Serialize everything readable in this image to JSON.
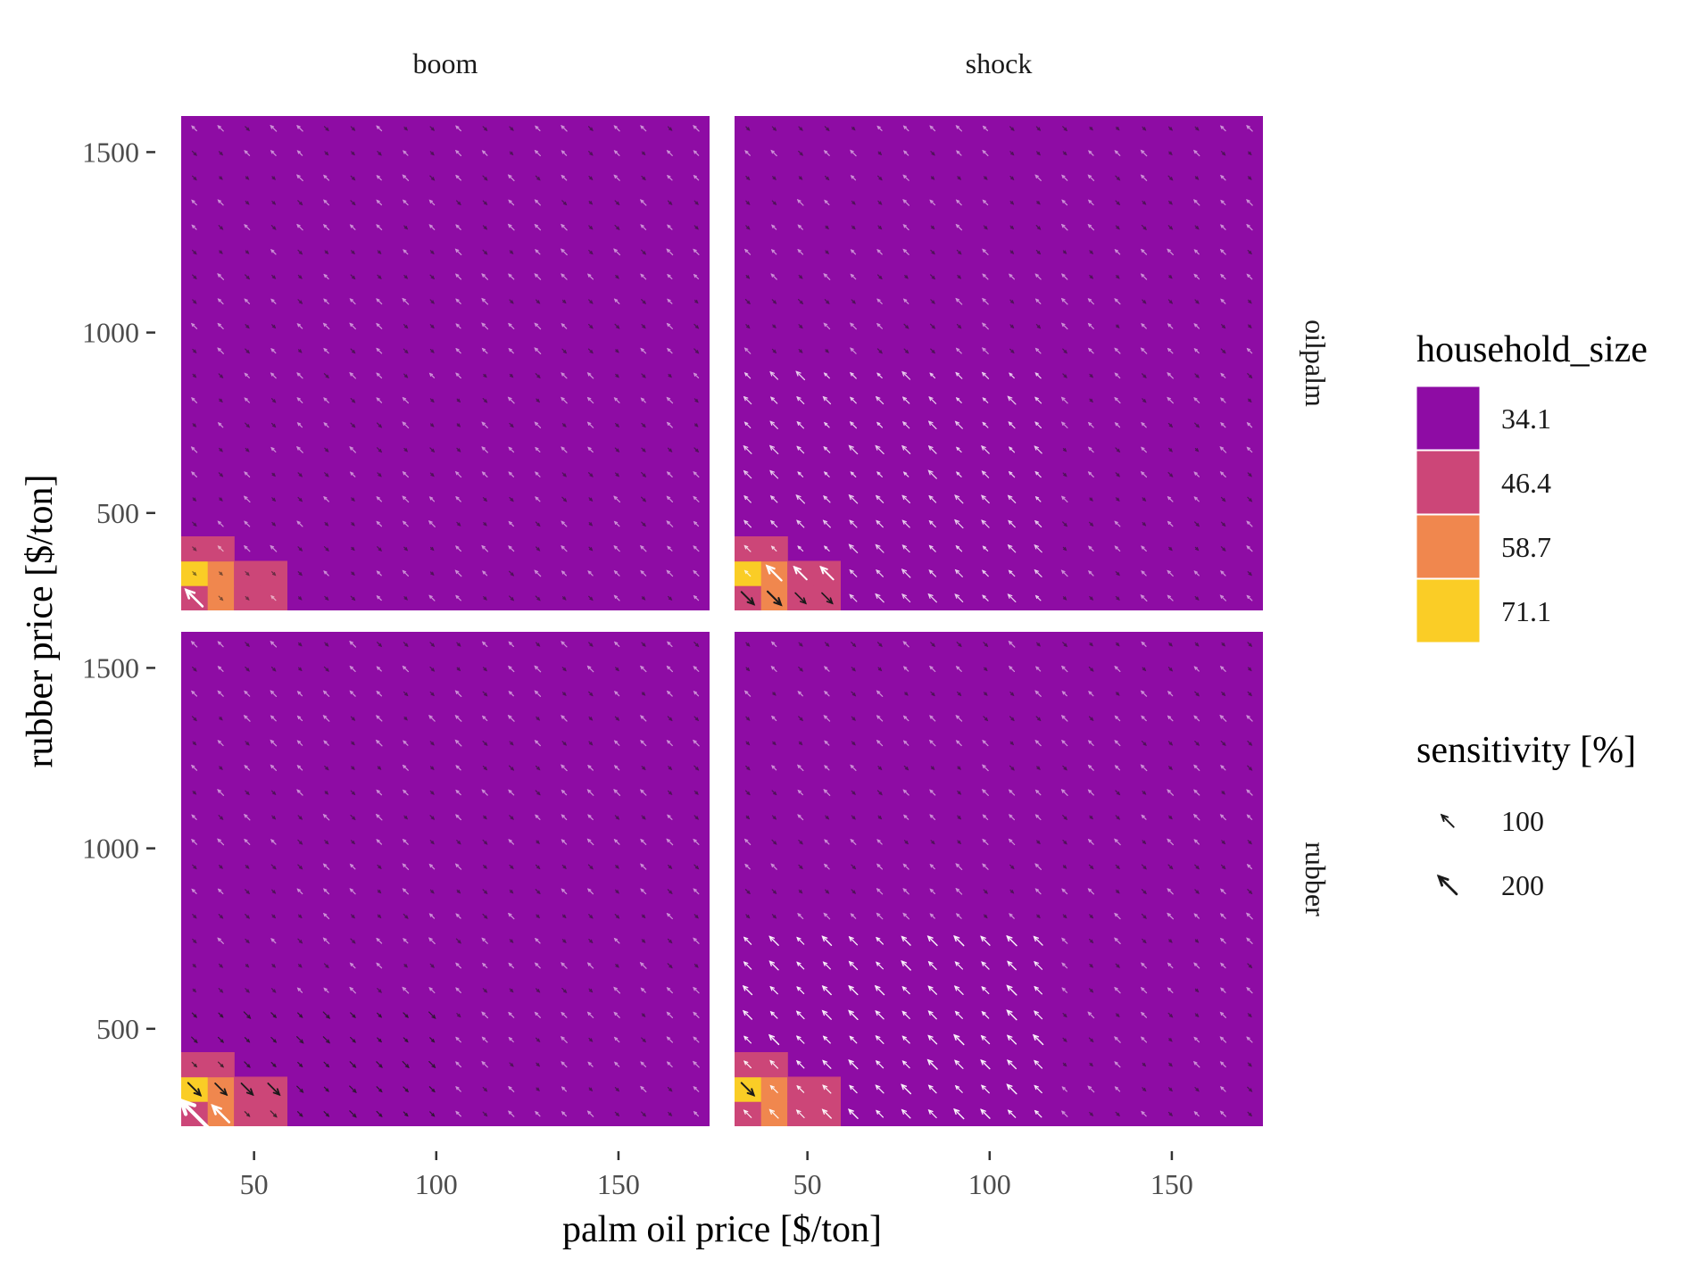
{
  "chart_data": {
    "type": "heatmap",
    "facets": {
      "columns": [
        "boom",
        "shock"
      ],
      "rows": [
        "oilpalm",
        "rubber"
      ]
    },
    "xlabel": "palm oil price [$/ton]",
    "ylabel": "rubber price [$/ton]",
    "xlim": [
      30,
      175
    ],
    "ylim": [
      230,
      1600
    ],
    "x_ticks": [
      50,
      100,
      150
    ],
    "y_ticks": [
      500,
      1000,
      1500
    ],
    "grid_step": {
      "x": 7.25,
      "y": 68.5
    },
    "grid_on": false,
    "fill": {
      "name": "household_size",
      "levels": [
        {
          "label": "34.1",
          "value": 34.1,
          "color": "#8E0CA4"
        },
        {
          "label": "46.4",
          "value": 46.4,
          "color": "#CC4678"
        },
        {
          "label": "58.7",
          "value": 58.7,
          "color": "#F0874E"
        },
        {
          "label": "71.1",
          "value": 71.1,
          "color": "#FACD26"
        }
      ],
      "default_value": 34.1
    },
    "arrows": {
      "name": "sensitivity [%]",
      "legend_values": [
        100,
        200
      ],
      "light_color": "#ffffff",
      "dark_color": "#1a1a1a"
    },
    "panels": [
      {
        "column": "boom",
        "row": "oilpalm",
        "cells": [
          {
            "x": 33.6,
            "y": 264,
            "value": 46.4
          },
          {
            "x": 40.9,
            "y": 264,
            "value": 58.7
          },
          {
            "x": 48.1,
            "y": 264,
            "value": 46.4
          },
          {
            "x": 55.4,
            "y": 264,
            "value": 46.4
          },
          {
            "x": 33.6,
            "y": 333,
            "value": 71.1
          },
          {
            "x": 40.9,
            "y": 333,
            "value": 58.7
          },
          {
            "x": 48.1,
            "y": 333,
            "value": 46.4
          },
          {
            "x": 55.4,
            "y": 333,
            "value": 46.4
          },
          {
            "x": 33.6,
            "y": 401,
            "value": 46.4
          },
          {
            "x": 40.9,
            "y": 401,
            "value": 46.4
          }
        ],
        "arrow_field": "faint_mixed",
        "arrows": [
          {
            "x": 33.6,
            "y": 264,
            "value": 100,
            "tone": "light",
            "dir": "nw"
          }
        ]
      },
      {
        "column": "shock",
        "row": "oilpalm",
        "cells": [
          {
            "x": 33.6,
            "y": 264,
            "value": 46.4
          },
          {
            "x": 40.9,
            "y": 264,
            "value": 58.7
          },
          {
            "x": 48.1,
            "y": 264,
            "value": 46.4
          },
          {
            "x": 55.4,
            "y": 264,
            "value": 46.4
          },
          {
            "x": 33.6,
            "y": 333,
            "value": 71.1
          },
          {
            "x": 40.9,
            "y": 333,
            "value": 58.7
          },
          {
            "x": 48.1,
            "y": 333,
            "value": 46.4
          },
          {
            "x": 55.4,
            "y": 333,
            "value": 46.4
          },
          {
            "x": 33.6,
            "y": 401,
            "value": 46.4
          },
          {
            "x": 40.9,
            "y": 401,
            "value": 46.4
          }
        ],
        "arrow_field": "moderate_light",
        "arrows": [
          {
            "x": 33.6,
            "y": 264,
            "value": 60,
            "tone": "dark",
            "dir": "se"
          },
          {
            "x": 40.9,
            "y": 264,
            "value": 70,
            "tone": "dark",
            "dir": "se"
          },
          {
            "x": 48.1,
            "y": 264,
            "value": 40,
            "tone": "dark",
            "dir": "se"
          },
          {
            "x": 55.4,
            "y": 264,
            "value": 40,
            "tone": "dark",
            "dir": "se"
          },
          {
            "x": 40.9,
            "y": 333,
            "value": 80,
            "tone": "light",
            "dir": "nw"
          },
          {
            "x": 48.1,
            "y": 333,
            "value": 60,
            "tone": "light",
            "dir": "nw"
          },
          {
            "x": 55.4,
            "y": 333,
            "value": 60,
            "tone": "light",
            "dir": "nw"
          }
        ]
      },
      {
        "column": "boom",
        "row": "rubber",
        "cells": [
          {
            "x": 33.6,
            "y": 264,
            "value": 46.4
          },
          {
            "x": 40.9,
            "y": 264,
            "value": 58.7
          },
          {
            "x": 48.1,
            "y": 264,
            "value": 46.4
          },
          {
            "x": 55.4,
            "y": 264,
            "value": 46.4
          },
          {
            "x": 33.6,
            "y": 333,
            "value": 71.1
          },
          {
            "x": 40.9,
            "y": 333,
            "value": 58.7
          },
          {
            "x": 48.1,
            "y": 333,
            "value": 46.4
          },
          {
            "x": 55.4,
            "y": 333,
            "value": 46.4
          },
          {
            "x": 33.6,
            "y": 401,
            "value": 46.4
          },
          {
            "x": 40.9,
            "y": 401,
            "value": 46.4
          }
        ],
        "arrow_field": "dark_low",
        "arrows": [
          {
            "x": 33.6,
            "y": 264,
            "value": 200,
            "tone": "light",
            "dir": "nw"
          },
          {
            "x": 40.9,
            "y": 264,
            "value": 100,
            "tone": "light",
            "dir": "nw"
          },
          {
            "x": 33.6,
            "y": 333,
            "value": 60,
            "tone": "dark",
            "dir": "se"
          },
          {
            "x": 40.9,
            "y": 333,
            "value": 50,
            "tone": "dark",
            "dir": "se"
          },
          {
            "x": 48.1,
            "y": 333,
            "value": 50,
            "tone": "dark",
            "dir": "se"
          },
          {
            "x": 55.4,
            "y": 333,
            "value": 50,
            "tone": "dark",
            "dir": "se"
          }
        ]
      },
      {
        "column": "shock",
        "row": "rubber",
        "cells": [
          {
            "x": 33.6,
            "y": 264,
            "value": 46.4
          },
          {
            "x": 40.9,
            "y": 264,
            "value": 58.7
          },
          {
            "x": 48.1,
            "y": 264,
            "value": 46.4
          },
          {
            "x": 55.4,
            "y": 264,
            "value": 46.4
          },
          {
            "x": 33.6,
            "y": 333,
            "value": 71.1
          },
          {
            "x": 40.9,
            "y": 333,
            "value": 58.7
          },
          {
            "x": 48.1,
            "y": 333,
            "value": 46.4
          },
          {
            "x": 55.4,
            "y": 333,
            "value": 46.4
          },
          {
            "x": 33.6,
            "y": 401,
            "value": 46.4
          },
          {
            "x": 40.9,
            "y": 401,
            "value": 46.4
          }
        ],
        "arrow_field": "strong_light",
        "arrows": [
          {
            "x": 33.6,
            "y": 333,
            "value": 60,
            "tone": "dark",
            "dir": "se"
          }
        ]
      }
    ]
  }
}
